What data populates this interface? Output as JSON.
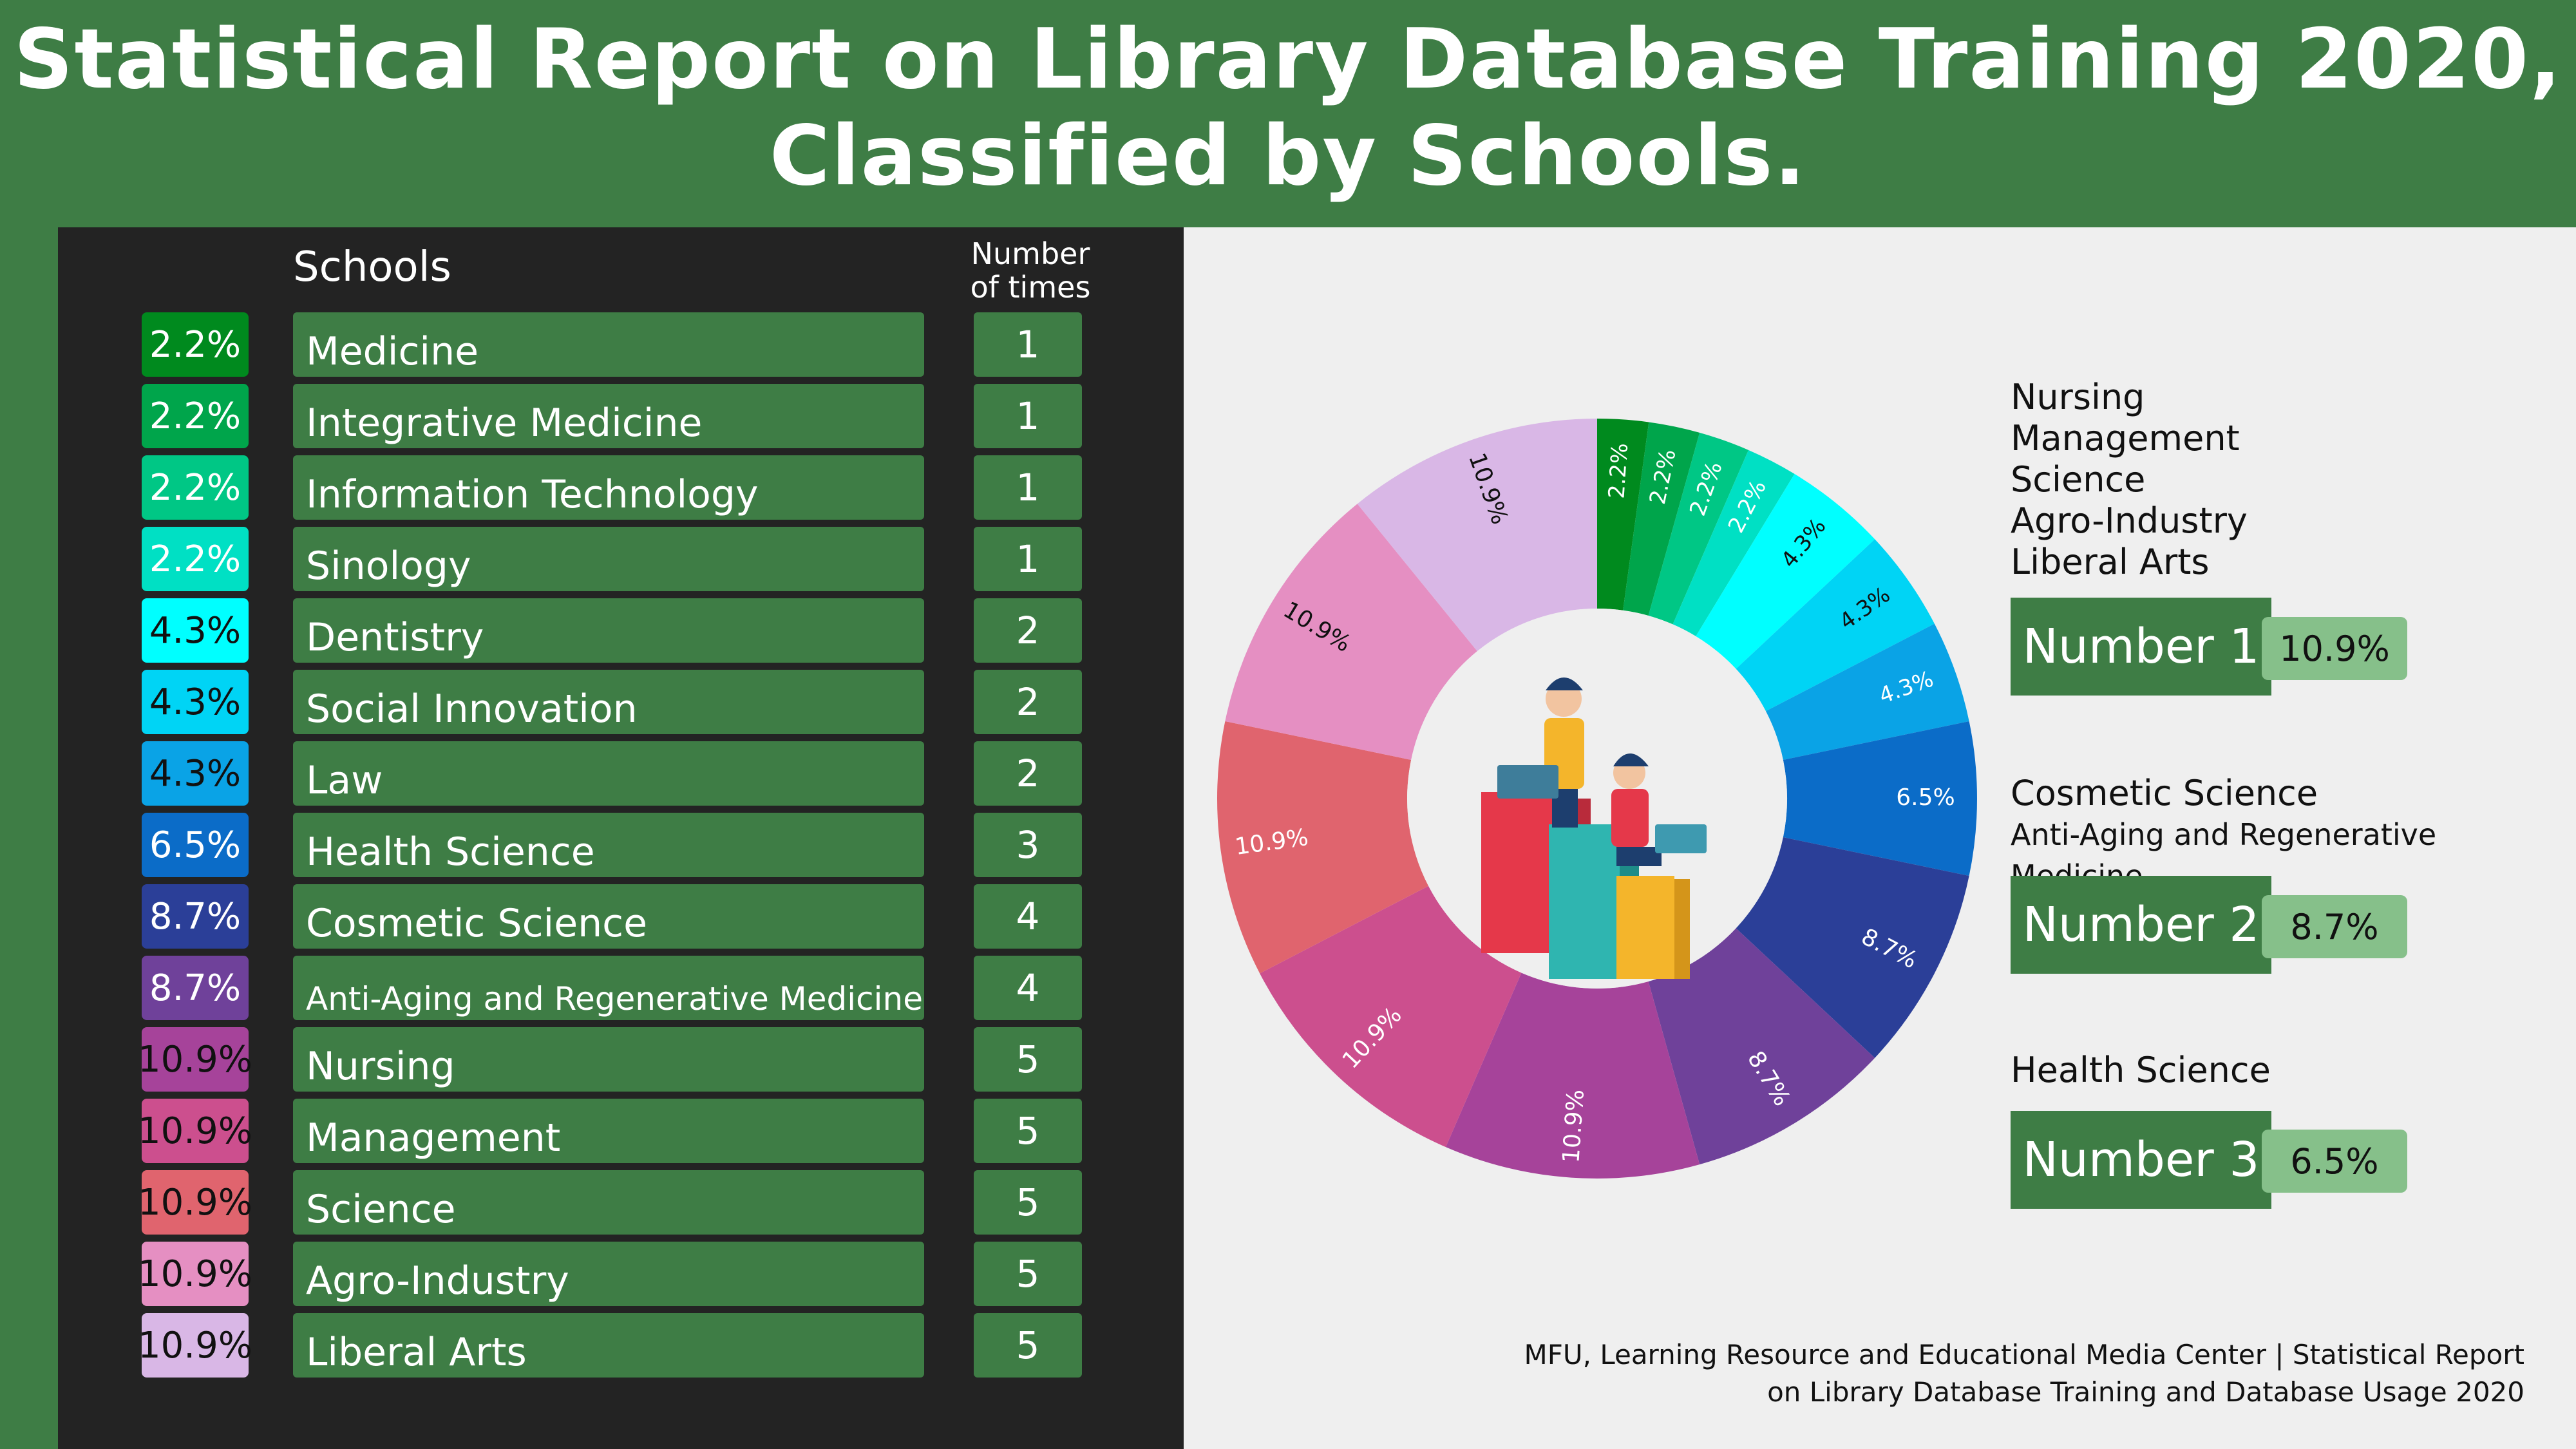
{
  "title": {
    "line1": "Statistical Report on Library Database Training 2020,",
    "line2": "Classified by Schools."
  },
  "headers": {
    "schools": "Schools",
    "number_line1": "Number",
    "number_line2": "of times"
  },
  "chart_data": {
    "type": "pie",
    "categories": [
      "Medicine",
      "Integrative Medicine",
      "Information Technology",
      "Sinology",
      "Dentistry",
      "Social Innovation",
      "Law",
      "Health Science",
      "Cosmetic Science",
      "Anti-Aging and Regenerative Medicine",
      "Nursing",
      "Management",
      "Science",
      "Agro-Industry",
      "Liberal Arts"
    ],
    "values": [
      1,
      1,
      1,
      1,
      2,
      2,
      2,
      3,
      4,
      4,
      5,
      5,
      5,
      5,
      5
    ],
    "labels": [
      "2.2%",
      "2.2%",
      "2.2%",
      "2.2%",
      "4.3%",
      "4.3%",
      "4.3%",
      "6.5%",
      "8.7%",
      "8.7%",
      "10.9%",
      "10.9%",
      "10.9%",
      "10.9%",
      "10.9%"
    ],
    "colors": [
      "#008a1e",
      "#00a54b",
      "#00c785",
      "#00e0c4",
      "#00ffff",
      "#00d4f5",
      "#0aa3e6",
      "#0b6cc8",
      "#2b3f98",
      "#6f419a",
      "#a6439a",
      "#cc4f8e",
      "#e0646e",
      "#e58fc2",
      "#d9b7e6"
    ]
  },
  "rows": [
    {
      "pct": "2.2%",
      "school": "Medicine",
      "count": "1"
    },
    {
      "pct": "2.2%",
      "school": "Integrative Medicine",
      "count": "1"
    },
    {
      "pct": "2.2%",
      "school": "Information Technology",
      "count": "1"
    },
    {
      "pct": "2.2%",
      "school": "Sinology",
      "count": "1"
    },
    {
      "pct": "4.3%",
      "school": "Dentistry",
      "count": "2"
    },
    {
      "pct": "4.3%",
      "school": "Social Innovation",
      "count": "2"
    },
    {
      "pct": "4.3%",
      "school": "Law",
      "count": "2"
    },
    {
      "pct": "6.5%",
      "school": "Health Science",
      "count": "3"
    },
    {
      "pct": "8.7%",
      "school": "Cosmetic Science",
      "count": "4"
    },
    {
      "pct": "8.7%",
      "school": "Anti-Aging and Regenerative Medicine",
      "count": "4"
    },
    {
      "pct": "10.9%",
      "school": "Nursing",
      "count": "5"
    },
    {
      "pct": "10.9%",
      "school": "Management",
      "count": "5"
    },
    {
      "pct": "10.9%",
      "school": "Science",
      "count": "5"
    },
    {
      "pct": "10.9%",
      "school": "Agro-Industry",
      "count": "5"
    },
    {
      "pct": "10.9%",
      "school": "Liberal Arts",
      "count": "5"
    }
  ],
  "ranking": {
    "rank1": {
      "schools": [
        "Nursing",
        "Management",
        "Science",
        "Agro-Industry",
        "Liberal Arts"
      ],
      "label": "Number 1",
      "pct": "10.9%"
    },
    "rank2": {
      "schools": [
        "Cosmetic Science",
        "Anti-Aging and Regenerative Medicine"
      ],
      "label": "Number 2",
      "pct": "8.7%"
    },
    "rank3": {
      "schools": [
        "Health Science"
      ],
      "label": "Number 3",
      "pct": "6.5%"
    }
  },
  "footer": {
    "line1": "MFU, Learning Resource and Educational Media Center | Statistical Report",
    "line2": "on Library Database Training and Database Usage 2020"
  }
}
